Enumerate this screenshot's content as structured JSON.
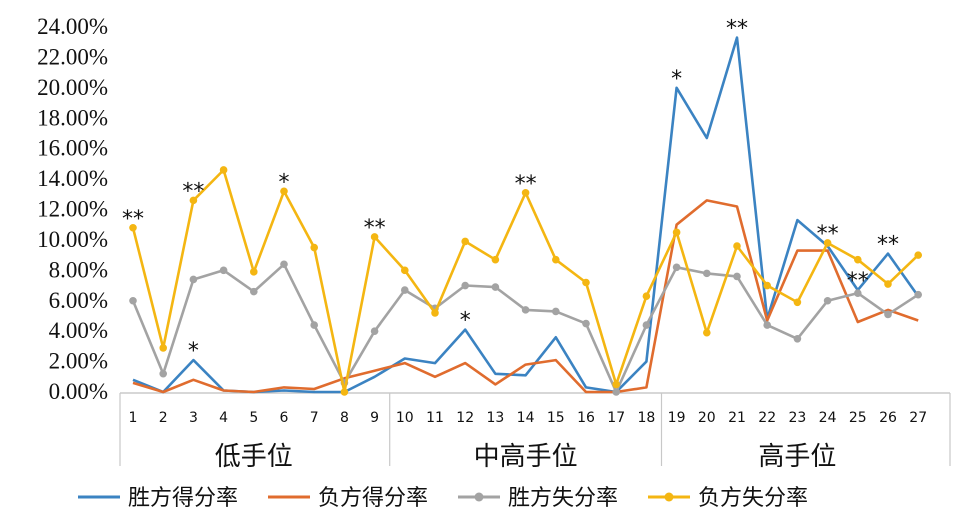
{
  "chart_data": {
    "type": "line",
    "title": "",
    "xlabel": "",
    "ylabel": "",
    "ylim": [
      0,
      24
    ],
    "yticks": [
      "0.00%",
      "2.00%",
      "4.00%",
      "6.00%",
      "8.00%",
      "10.00%",
      "12.00%",
      "14.00%",
      "16.00%",
      "18.00%",
      "20.00%",
      "22.00%",
      "24.00%"
    ],
    "categories": [
      "1",
      "2",
      "3",
      "4",
      "5",
      "6",
      "7",
      "8",
      "9",
      "10",
      "11",
      "12",
      "13",
      "14",
      "15",
      "16",
      "17",
      "18",
      "19",
      "20",
      "21",
      "22",
      "23",
      "24",
      "25",
      "26",
      "27"
    ],
    "groups": [
      {
        "label": "低手位",
        "from": 1,
        "to": 9
      },
      {
        "label": "中高手位",
        "from": 10,
        "to": 18
      },
      {
        "label": "高手位",
        "from": 19,
        "to": 27
      }
    ],
    "legend_position": "bottom",
    "grid": false,
    "series": [
      {
        "name": "胜方得分率",
        "color": "#3b83c2",
        "values": [
          0.8,
          0.0,
          2.1,
          0.1,
          0.0,
          0.1,
          0.0,
          0.0,
          1.0,
          2.2,
          1.9,
          4.1,
          1.2,
          1.1,
          3.6,
          0.3,
          0.0,
          2.0,
          20.0,
          16.7,
          23.3,
          4.8,
          11.3,
          9.6,
          6.7,
          9.1,
          6.3
        ]
      },
      {
        "name": "负方得分率",
        "color": "#e06c2e",
        "values": [
          0.6,
          0.0,
          0.8,
          0.1,
          0.0,
          0.3,
          0.2,
          0.9,
          1.4,
          1.9,
          1.0,
          1.9,
          0.5,
          1.8,
          2.1,
          0.0,
          0.0,
          0.3,
          11.0,
          12.6,
          12.2,
          4.7,
          9.3,
          9.3,
          4.6,
          5.4,
          4.7
        ]
      },
      {
        "name": "胜方失分率",
        "color": "#a3a3a3",
        "values": [
          6.0,
          1.2,
          7.4,
          8.0,
          6.6,
          8.4,
          4.4,
          0.6,
          4.0,
          6.7,
          5.5,
          7.0,
          6.9,
          5.4,
          5.3,
          4.5,
          0.0,
          4.4,
          8.2,
          7.8,
          7.6,
          4.4,
          3.5,
          6.0,
          6.5,
          5.1,
          6.4
        ]
      },
      {
        "name": "负方失分率",
        "color": "#f4b612",
        "values": [
          10.8,
          2.9,
          12.6,
          14.6,
          7.9,
          13.2,
          9.5,
          0.0,
          10.2,
          8.0,
          5.2,
          9.9,
          8.7,
          13.1,
          8.7,
          7.2,
          0.5,
          6.3,
          10.5,
          3.9,
          9.6,
          7.0,
          5.9,
          9.8,
          8.7,
          7.1,
          9.0
        ]
      }
    ],
    "annotations": [
      {
        "category": "1",
        "text": "**",
        "value": 10.8
      },
      {
        "category": "3",
        "text": "*",
        "value": 2.1
      },
      {
        "category": "3",
        "text": "**",
        "value": 12.6
      },
      {
        "category": "6",
        "text": "*",
        "value": 13.2
      },
      {
        "category": "9",
        "text": "**",
        "value": 10.2
      },
      {
        "category": "12",
        "text": "*",
        "value": 4.1
      },
      {
        "category": "14",
        "text": "**",
        "value": 13.1
      },
      {
        "category": "19",
        "text": "*",
        "value": 20.0
      },
      {
        "category": "21",
        "text": "**",
        "value": 23.3
      },
      {
        "category": "24",
        "text": "**",
        "value": 9.8
      },
      {
        "category": "25",
        "text": "**",
        "value": 6.7
      },
      {
        "category": "26",
        "text": "**",
        "value": 9.1
      }
    ]
  }
}
